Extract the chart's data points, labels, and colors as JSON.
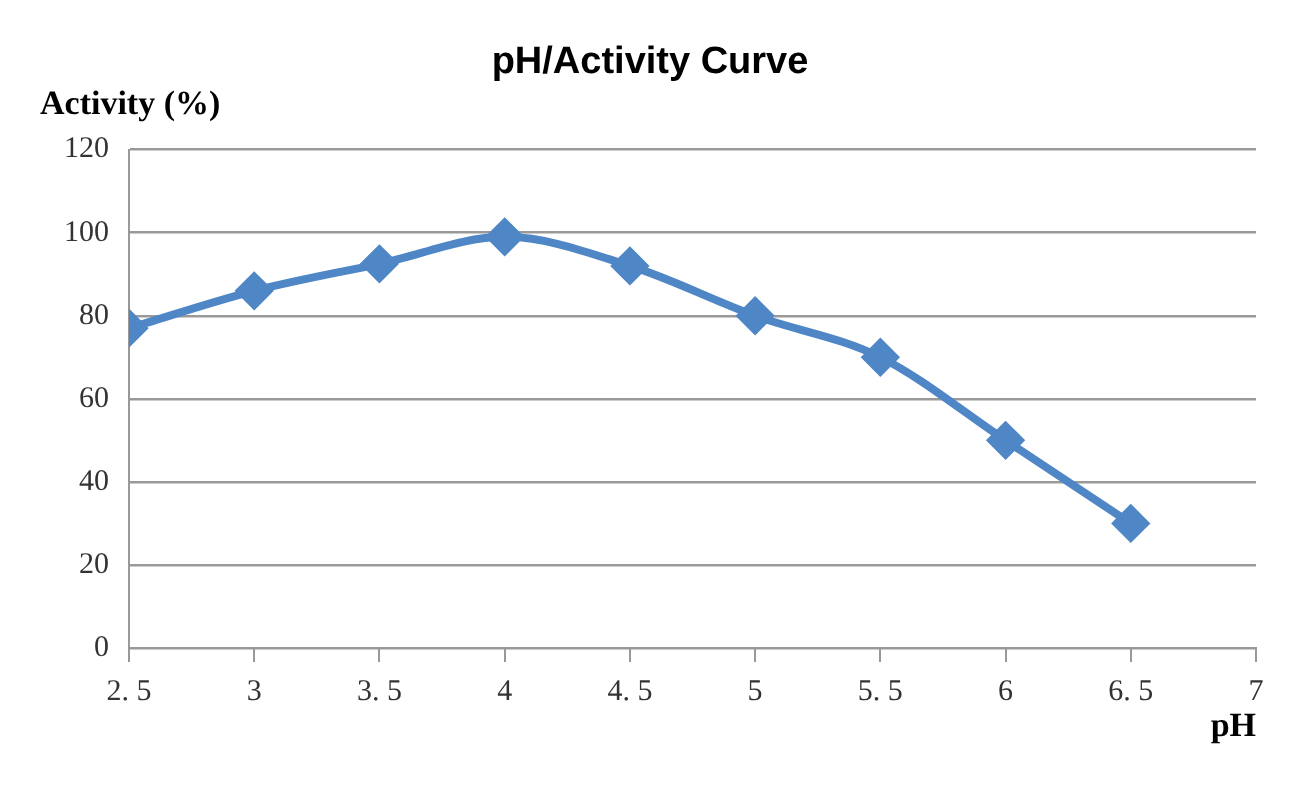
{
  "chart_data": {
    "type": "line",
    "title": "pH/Activity Curve",
    "xlabel": "pH",
    "ylabel": "Activity (%)",
    "x": [
      2.5,
      3,
      3.5,
      4,
      4.5,
      5,
      5.5,
      6,
      6.5
    ],
    "series": [
      {
        "color": "#4f86c6",
        "values": [
          77,
          86,
          92.5,
          99,
          92,
          80,
          70,
          50,
          30
        ]
      }
    ],
    "xlim": [
      2.5,
      7
    ],
    "xticks": [
      {
        "value": 2.5,
        "label": "2. 5"
      },
      3,
      {
        "value": 3.5,
        "label": "3. 5"
      },
      4,
      {
        "value": 4.5,
        "label": "4. 5"
      },
      5,
      {
        "value": 5.5,
        "label": "5. 5"
      },
      6,
      {
        "value": 6.5,
        "label": "6. 5"
      },
      7
    ],
    "ylim": [
      0,
      120
    ],
    "yticks": [
      0,
      20,
      40,
      60,
      80,
      100,
      120
    ],
    "grid": "y",
    "legend": false,
    "marker": "diamond",
    "line_style": "solid"
  }
}
